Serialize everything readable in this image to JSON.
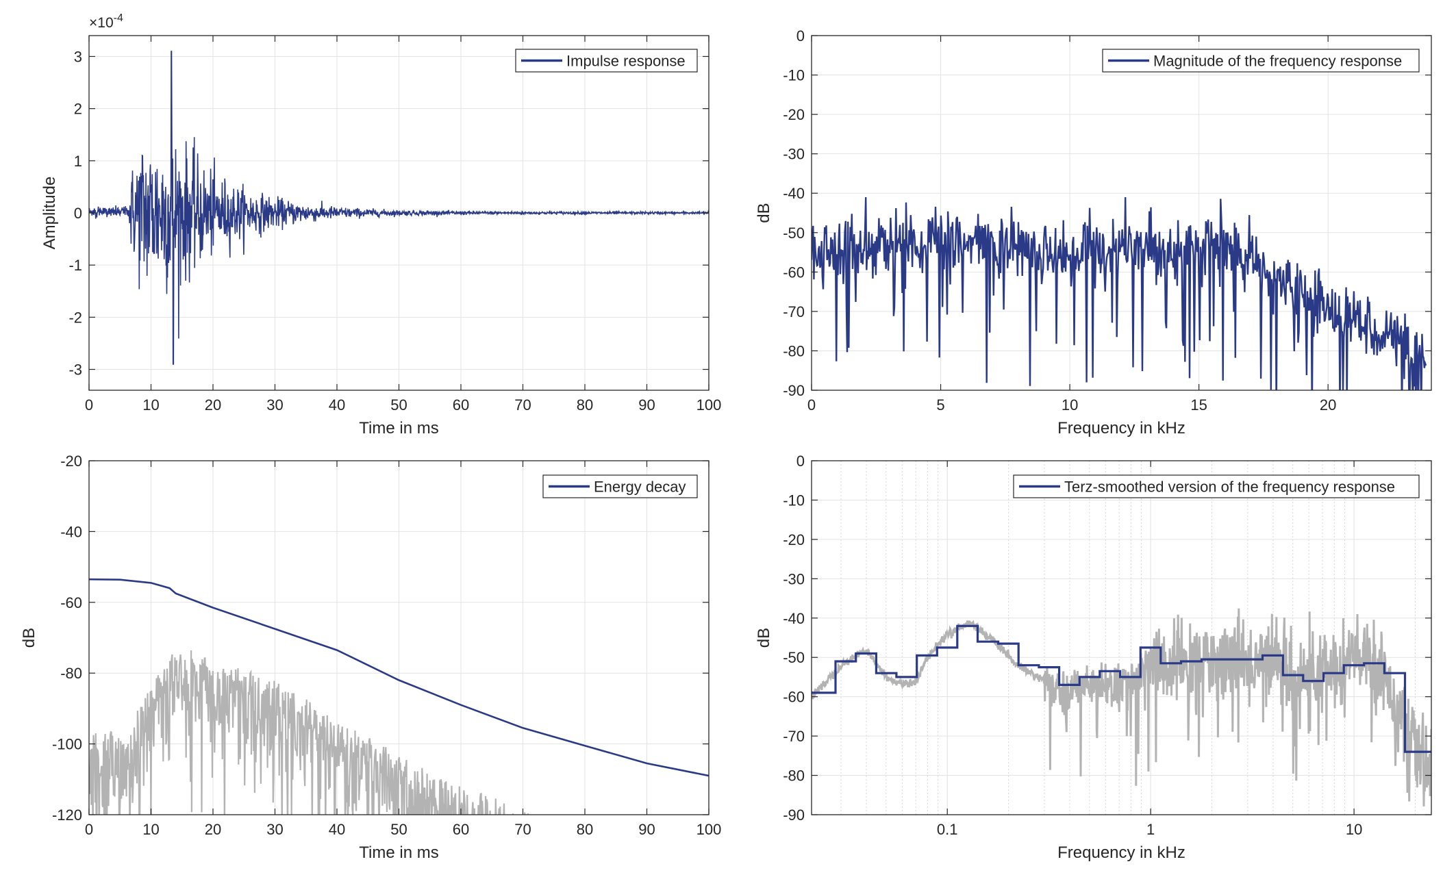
{
  "chart_data": [
    {
      "type": "line",
      "ylabel": "Amplitude",
      "xlabel": "Time in ms",
      "exponent_label": "×10",
      "exponent_power": "-4",
      "xlim": [
        0,
        100
      ],
      "ylim": [
        -3.4,
        3.4
      ],
      "xticks": [
        0,
        10,
        20,
        30,
        40,
        50,
        60,
        70,
        80,
        90,
        100
      ],
      "yticks": [
        -3,
        -2,
        -1,
        0,
        1,
        2,
        3
      ],
      "xtick_labels": [
        "0",
        "10",
        "20",
        "30",
        "40",
        "50",
        "60",
        "70",
        "80",
        "90",
        "100"
      ],
      "ytick_labels": [
        "-3",
        "-2",
        "-1",
        "0",
        "1",
        "2",
        "3"
      ],
      "grid": true,
      "legend_position": "top-right",
      "series": [
        {
          "name": "Impulse response",
          "color": "#2b3a87",
          "onset_ms": 6.5,
          "peak_ms": 13.3,
          "peak_value": 3.1,
          "min_value": -2.9,
          "decay_end_ms": 62
        }
      ]
    },
    {
      "type": "line",
      "ylabel": "dB",
      "xlabel": "Frequency in kHz",
      "xlim": [
        0,
        24
      ],
      "ylim": [
        -90,
        0
      ],
      "xticks": [
        0,
        5,
        10,
        15,
        20
      ],
      "yticks": [
        0,
        -10,
        -20,
        -30,
        -40,
        -50,
        -60,
        -70,
        -80,
        -90
      ],
      "xtick_labels": [
        "0",
        "5",
        "10",
        "15",
        "20"
      ],
      "ytick_labels": [
        "0",
        "-10",
        "-20",
        "-30",
        "-40",
        "-50",
        "-60",
        "-70",
        "-80",
        "-90"
      ],
      "grid": true,
      "legend_position": "top-right",
      "series": [
        {
          "name": "Magnitude of the frequency response",
          "color": "#2b3a87",
          "envelope_x": [
            0,
            4,
            10,
            16,
            17.5,
            19,
            21,
            23,
            23.8
          ],
          "envelope_y": [
            -55,
            -52,
            -55,
            -53,
            -60,
            -66,
            -72,
            -78,
            -85
          ]
        }
      ]
    },
    {
      "type": "line",
      "ylabel": "dB",
      "xlabel": "Time in ms",
      "xlim": [
        0,
        100
      ],
      "ylim": [
        -120,
        -20
      ],
      "xticks": [
        0,
        10,
        20,
        30,
        40,
        50,
        60,
        70,
        80,
        90,
        100
      ],
      "yticks": [
        -20,
        -40,
        -60,
        -80,
        -100,
        -120
      ],
      "xtick_labels": [
        "0",
        "10",
        "20",
        "30",
        "40",
        "50",
        "60",
        "70",
        "80",
        "90",
        "100"
      ],
      "ytick_labels": [
        "-20",
        "-40",
        "-60",
        "-80",
        "-100",
        "-120"
      ],
      "grid": true,
      "legend_position": "top-right",
      "series": [
        {
          "name": "Energy decay",
          "color": "#2b3a87",
          "x": [
            0,
            5,
            10,
            13,
            14,
            20,
            30,
            40,
            50,
            60,
            70,
            80,
            90,
            100
          ],
          "y": [
            -53.5,
            -53.6,
            -54.5,
            -56,
            -57.5,
            -61.5,
            -67.5,
            -73.5,
            -82,
            -89,
            -95.5,
            -100.5,
            -105.5,
            -109
          ]
        },
        {
          "color": "#b3b3b3",
          "envelope_x": [
            0,
            6,
            14,
            30,
            45,
            55,
            65,
            72
          ],
          "envelope_y": [
            -97,
            -96,
            -72,
            -82,
            -98,
            -108,
            -115,
            -120
          ]
        }
      ]
    },
    {
      "type": "line",
      "ylabel": "dB",
      "xlabel": "Frequency in kHz",
      "x_scale": "log",
      "xlim": [
        0.0215,
        24
      ],
      "ylim": [
        -90,
        0
      ],
      "xticks": [
        0.1,
        1,
        10
      ],
      "yticks": [
        0,
        -10,
        -20,
        -30,
        -40,
        -50,
        -60,
        -70,
        -80,
        -90
      ],
      "xtick_labels": [
        "0.1",
        "1",
        "10"
      ],
      "ytick_labels": [
        "0",
        "-10",
        "-20",
        "-30",
        "-40",
        "-50",
        "-60",
        "-70",
        "-80",
        "-90"
      ],
      "grid": true,
      "legend_position": "top-right",
      "series": [
        {
          "name": "Terz-smoothed version of the frequency response",
          "color": "#2b3a87",
          "band_edges_khz": [
            0.0215,
            0.0282,
            0.0355,
            0.0447,
            0.0562,
            0.0708,
            0.0891,
            0.112,
            0.141,
            0.178,
            0.224,
            0.282,
            0.355,
            0.447,
            0.562,
            0.708,
            0.891,
            1.12,
            1.41,
            1.78,
            2.24,
            2.82,
            3.55,
            4.47,
            5.62,
            7.08,
            8.91,
            11.2,
            14.1,
            17.8,
            24
          ],
          "levels_db": [
            -59,
            -51,
            -49,
            -54,
            -55,
            -49.5,
            -47.5,
            -42,
            -46,
            -46.5,
            -52,
            -52.5,
            -57,
            -55,
            -53.5,
            -55,
            -47.5,
            -51.5,
            -51,
            -50.5,
            -50.5,
            -50.5,
            -49.5,
            -54.5,
            -56,
            -54,
            -52,
            -51.5,
            -54,
            -74
          ]
        },
        {
          "color": "#b3b3b3",
          "x": [
            0.0215,
            0.03,
            0.04,
            0.05,
            0.06,
            0.07,
            0.08,
            0.1,
            0.13,
            0.17,
            0.22,
            0.3,
            0.38,
            0.5,
            0.7,
            1,
            1.5,
            2,
            3,
            4,
            5,
            7,
            10,
            14,
            18,
            24
          ],
          "y": [
            -60,
            -52,
            -48,
            -55,
            -57,
            -56,
            -50,
            -44,
            -41,
            -46,
            -52,
            -56,
            -60,
            -56,
            -58,
            -52,
            -52,
            -50,
            -52,
            -49,
            -56,
            -54,
            -50,
            -53,
            -70,
            -80
          ]
        }
      ]
    }
  ]
}
